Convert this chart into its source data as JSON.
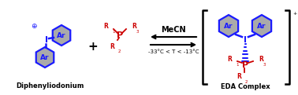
{
  "bg_color": "#ffffff",
  "blue": "#1a1aff",
  "red": "#cc0000",
  "black": "#000000",
  "gray": "#aaaaaa",
  "dark_gray": "#888888",
  "title_diphenyl": "Diphenyliodonium",
  "title_eda": "EDA Complex",
  "arrow_text_top": "MeCN",
  "arrow_text_bottom": "-33°C < T < -13°C",
  "plus_sign": "+",
  "bracket_plus": "⁺",
  "figw": 3.78,
  "figh": 1.21,
  "dpi": 100
}
